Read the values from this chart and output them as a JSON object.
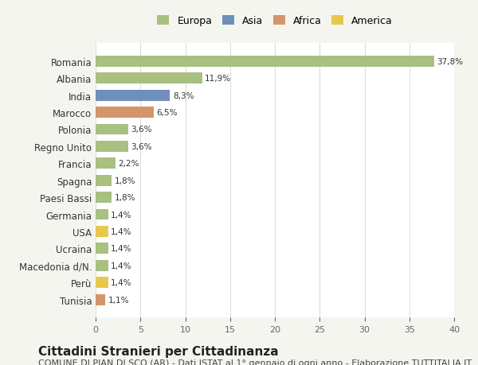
{
  "categories": [
    "Romania",
    "Albania",
    "India",
    "Marocco",
    "Polonia",
    "Regno Unito",
    "Francia",
    "Spagna",
    "Paesi Bassi",
    "Germania",
    "USA",
    "Ucraina",
    "Macedonia d/N.",
    "Perù",
    "Tunisia"
  ],
  "values": [
    37.8,
    11.9,
    8.3,
    6.5,
    3.6,
    3.6,
    2.2,
    1.8,
    1.8,
    1.4,
    1.4,
    1.4,
    1.4,
    1.4,
    1.1
  ],
  "labels": [
    "37,8%",
    "11,9%",
    "8,3%",
    "6,5%",
    "3,6%",
    "3,6%",
    "2,2%",
    "1,8%",
    "1,8%",
    "1,4%",
    "1,4%",
    "1,4%",
    "1,4%",
    "1,4%",
    "1,1%"
  ],
  "continents": [
    "Europa",
    "Europa",
    "Asia",
    "Africa",
    "Europa",
    "Europa",
    "Europa",
    "Europa",
    "Europa",
    "Europa",
    "America",
    "Europa",
    "Europa",
    "America",
    "Africa"
  ],
  "continent_colors": {
    "Europa": "#a8c080",
    "Asia": "#6e8fbb",
    "Africa": "#d4956a",
    "America": "#e8c84a"
  },
  "legend_entries": [
    "Europa",
    "Asia",
    "Africa",
    "America"
  ],
  "legend_colors": [
    "#a8c080",
    "#6e8fbb",
    "#d4956a",
    "#e8c84a"
  ],
  "title": "Cittadini Stranieri per Cittadinanza",
  "subtitle": "COMUNE DI PIAN DI SCO (AR) - Dati ISTAT al 1° gennaio di ogni anno - Elaborazione TUTTITALIA.IT",
  "xlim": [
    0,
    40
  ],
  "xticks": [
    0,
    5,
    10,
    15,
    20,
    25,
    30,
    35,
    40
  ],
  "background_color": "#f5f5f0",
  "bar_background": "#ffffff",
  "grid_color": "#dddddd",
  "title_fontsize": 11,
  "subtitle_fontsize": 8
}
